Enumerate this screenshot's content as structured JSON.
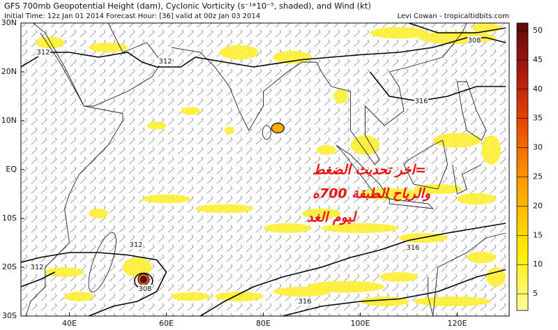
{
  "header": {
    "title": "GFS 700mb Geopotential Height (dam), Cyclonic Vorticity (s⁻¹*10⁻⁵, shaded), and Wind (kt)",
    "subtitle": "Initial Time: 12z Jan 01 2014 Forecast Hour: [36] valid at 00z Jan 03 2014",
    "credit": "Levi Cowan - tropicaltidbits.com"
  },
  "lat_labels": [
    "30N",
    "20N",
    "10N",
    "EQ",
    "10S",
    "20S",
    "30S"
  ],
  "lon_labels": [
    "40E",
    "60E",
    "80E",
    "100E",
    "120E"
  ],
  "colorbar": {
    "ticks": [
      5,
      10,
      15,
      20,
      25,
      30,
      35,
      40,
      45,
      50
    ]
  },
  "contour_labels": [
    "312",
    "312",
    "308",
    "316",
    "316",
    "312",
    "312",
    "308",
    "316"
  ],
  "annotation": [
    "=اخر تحديث الضغط",
    "والرياح الطبقة 700ه",
    "ليوم الغد"
  ]
}
